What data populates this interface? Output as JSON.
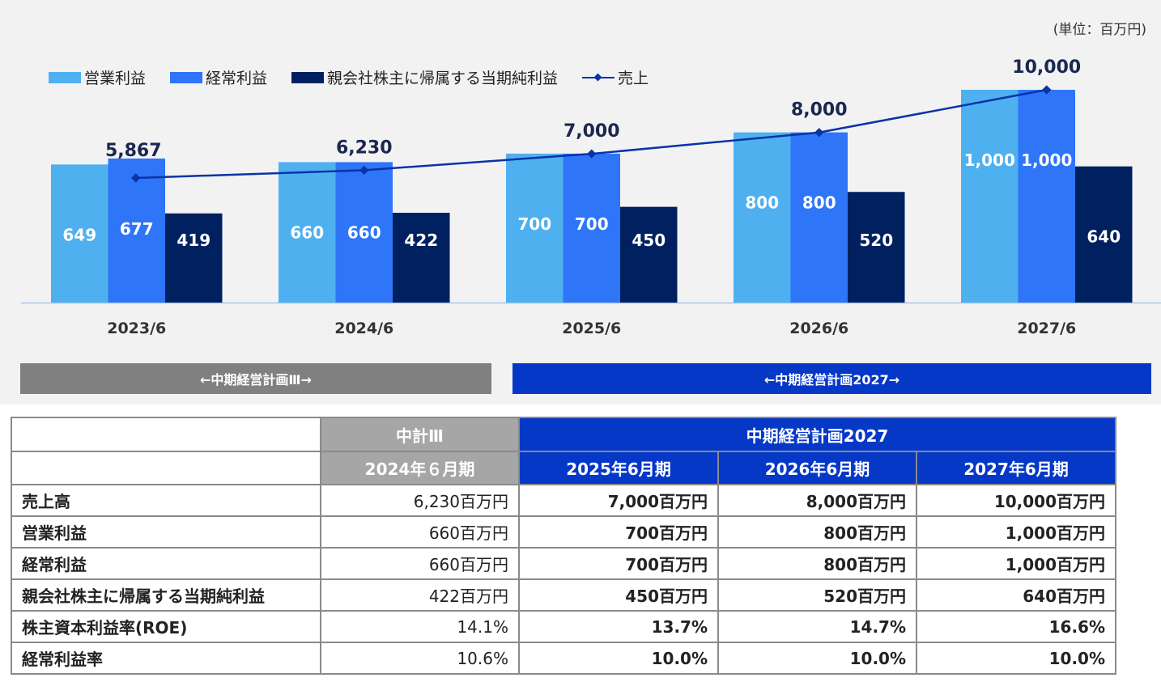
{
  "unit_label": "(単位：百万円)",
  "legend": [
    {
      "label": "営業利益",
      "color": "#4fb0f0"
    },
    {
      "label": "経常利益",
      "color": "#2e75f8"
    },
    {
      "label": "親会社株主に帰属する当期純利益",
      "color": "#00205f"
    },
    {
      "label": "売上",
      "color": "#0a33a8"
    }
  ],
  "plan_bars": {
    "plan3": "←中期経営計画Ⅲ→",
    "plan2027": "←中期経営計画2027→"
  },
  "chart_data": {
    "type": "bar",
    "categories": [
      "2023/6",
      "2024/6",
      "2025/6",
      "2026/6",
      "2027/6"
    ],
    "series": [
      {
        "name": "営業利益",
        "values": [
          649,
          660,
          700,
          800,
          1000
        ],
        "labels": [
          "649",
          "660",
          "700",
          "800",
          "1,000"
        ],
        "color": "#4fb0f0"
      },
      {
        "name": "経常利益",
        "values": [
          677,
          660,
          700,
          800,
          1000
        ],
        "labels": [
          "677",
          "660",
          "700",
          "800",
          "1,000"
        ],
        "color": "#2e75f8"
      },
      {
        "name": "親会社株主に帰属する当期純利益",
        "values": [
          419,
          422,
          450,
          520,
          640
        ],
        "labels": [
          "419",
          "422",
          "450",
          "520",
          "640"
        ],
        "color": "#00205f"
      }
    ],
    "line_series": {
      "name": "売上",
      "values": [
        5867,
        6230,
        7000,
        8000,
        10000
      ],
      "labels": [
        "5,867",
        "6,230",
        "7,000",
        "8,000",
        "10,000"
      ],
      "color": "#0a33a8"
    },
    "ylim_bars": [
      0,
      1000
    ],
    "ylim_line": [
      0,
      10000
    ],
    "unit": "百万円"
  },
  "table": {
    "group_headers": {
      "plan3": "中計Ⅲ",
      "plan2027": "中期経営計画2027"
    },
    "period_headers": [
      "2024年６月期",
      "2025年6月期",
      "2026年6月期",
      "2027年6月期"
    ],
    "rows": [
      {
        "label": "売上高",
        "values": [
          "6,230百万円",
          "7,000百万円",
          "8,000百万円",
          "10,000百万円"
        ]
      },
      {
        "label": "営業利益",
        "values": [
          "660百万円",
          "700百万円",
          "800百万円",
          "1,000百万円"
        ]
      },
      {
        "label": "経常利益",
        "values": [
          "660百万円",
          "700百万円",
          "800百万円",
          "1,000百万円"
        ]
      },
      {
        "label": "親会社株主に帰属する当期純利益",
        "values": [
          "422百万円",
          "450百万円",
          "520百万円",
          "640百万円"
        ]
      },
      {
        "label": "株主資本利益率(ROE)",
        "values": [
          "14.1%",
          "13.7%",
          "14.7%",
          "16.6%"
        ]
      },
      {
        "label": "経常利益率",
        "values": [
          "10.6%",
          "10.0%",
          "10.0%",
          "10.0%"
        ]
      }
    ]
  }
}
